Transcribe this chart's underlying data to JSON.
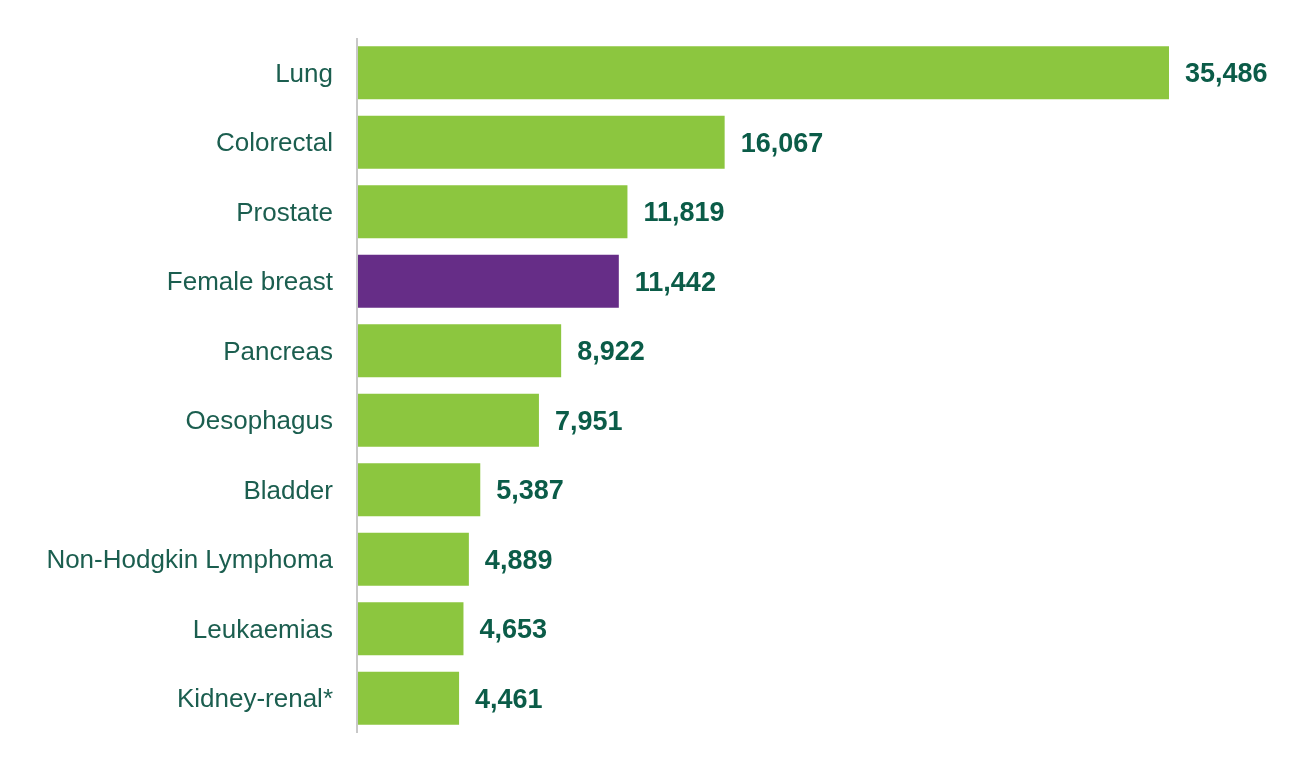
{
  "chart_data": {
    "type": "bar",
    "orientation": "horizontal",
    "categories": [
      "Lung",
      "Colorectal",
      "Prostate",
      "Female breast",
      "Pancreas",
      "Oesophagus",
      "Bladder",
      "Non-Hodgkin Lymphoma",
      "Leukaemias",
      "Kidney-renal*"
    ],
    "values": [
      35486,
      16067,
      11819,
      11442,
      8922,
      7951,
      5387,
      4889,
      4653,
      4461
    ],
    "value_labels": [
      "35,486",
      "16,067",
      "11,819",
      "11,442",
      "8,922",
      "7,951",
      "5,387",
      "4,889",
      "4,653",
      "4,461"
    ],
    "colors": [
      "#8cc63f",
      "#8cc63f",
      "#8cc63f",
      "#662d87",
      "#8cc63f",
      "#8cc63f",
      "#8cc63f",
      "#8cc63f",
      "#8cc63f",
      "#8cc63f"
    ],
    "grid": false,
    "legend": false
  }
}
